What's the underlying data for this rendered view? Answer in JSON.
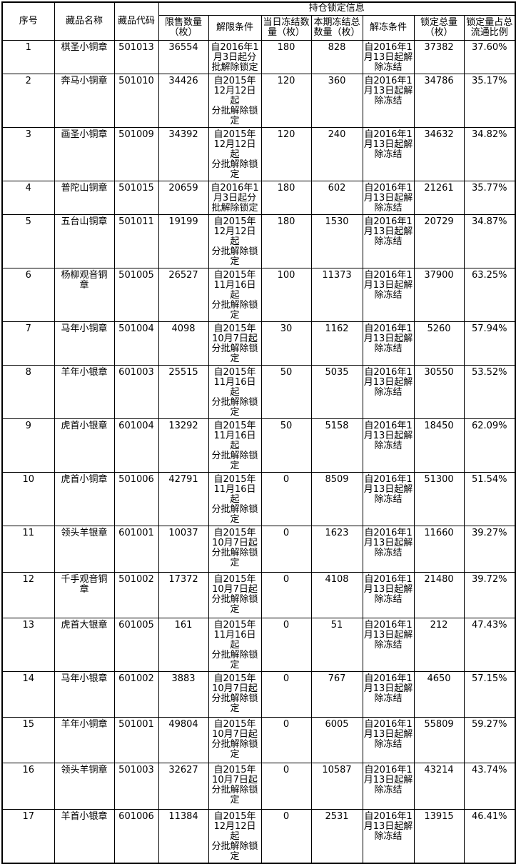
{
  "table": {
    "group_header": "持仓锁定信息",
    "headers": {
      "serial": "序号",
      "name": "藏品名称",
      "code": "藏品代码",
      "restricted_qty": "限售数量\n（枚）",
      "unlock_condition": "解限条件",
      "day_frozen_qty": "当日冻结数\n量（枚）",
      "period_frozen_total": "本期冻结总\n数量（枚）",
      "unfreeze_condition": "解冻条件",
      "locked_total": "锁定总量\n（枚）",
      "locked_ratio": "锁定量占总\n流通比例"
    },
    "rows": [
      [
        "1",
        "棋圣小铜章",
        "501013",
        "36554",
        "自2016年1\n月3日起分\n批解除锁定",
        "180",
        "828",
        "自2016年1\n月13日起解\n除冻结",
        "37382",
        "37.60%"
      ],
      [
        "2",
        "奔马小铜章",
        "501010",
        "34426",
        "自2015年\n12月12日起\n分批解除锁\n定",
        "120",
        "360",
        "自2016年1\n月13日起解\n除冻结",
        "34786",
        "35.17%"
      ],
      [
        "3",
        "画圣小铜章",
        "501009",
        "34392",
        "自2015年\n12月12日起\n分批解除锁\n定",
        "120",
        "240",
        "自2016年1\n月13日起解\n除冻结",
        "34632",
        "34.82%"
      ],
      [
        "4",
        "普陀山铜章",
        "501015",
        "20659",
        "自2016年1\n月3日起分\n批解除锁定",
        "180",
        "602",
        "自2016年1\n月13日起解\n除冻结",
        "21261",
        "35.77%"
      ],
      [
        "5",
        "五台山铜章",
        "501011",
        "19199",
        "自2015年\n12月12日起\n分批解除锁\n定",
        "180",
        "1530",
        "自2016年1\n月13日起解\n除冻结",
        "20729",
        "34.87%"
      ],
      [
        "6",
        "杨柳观音铜\n章",
        "501005",
        "26527",
        "自2015年\n11月16日起\n分批解除锁\n定",
        "100",
        "11373",
        "自2016年1\n月13日起解\n除冻结",
        "37900",
        "63.25%"
      ],
      [
        "7",
        "马年小铜章",
        "501004",
        "4098",
        "自2015年\n10月7日起\n分批解除锁\n定",
        "30",
        "1162",
        "自2016年1\n月13日起解\n除冻结",
        "5260",
        "57.94%"
      ],
      [
        "8",
        "羊年小银章",
        "601003",
        "25515",
        "自2015年\n11月16日起\n分批解除锁\n定",
        "50",
        "5035",
        "自2016年1\n月13日起解\n除冻结",
        "30550",
        "53.52%"
      ],
      [
        "9",
        "虎首小银章",
        "601004",
        "13292",
        "自2015年\n11月16日起\n分批解除锁\n定",
        "50",
        "5158",
        "自2016年1\n月13日起解\n除冻结",
        "18450",
        "62.09%"
      ],
      [
        "10",
        "虎首小铜章",
        "501006",
        "42791",
        "自2015年\n11月16日起\n分批解除锁\n定",
        "0",
        "8509",
        "自2016年1\n月13日起解\n除冻结",
        "51300",
        "51.54%"
      ],
      [
        "11",
        "领头羊银章",
        "601001",
        "10037",
        "自2015年\n10月7日起\n分批解除锁\n定",
        "0",
        "1623",
        "自2016年1\n月13日起解\n除冻结",
        "11660",
        "39.27%"
      ],
      [
        "12",
        "千手观音铜\n章",
        "501002",
        "17372",
        "自2015年\n10月7日起\n分批解除锁\n定",
        "0",
        "4108",
        "自2016年1\n月13日起解\n除冻结",
        "21480",
        "39.72%"
      ],
      [
        "13",
        "虎首大银章",
        "601005",
        "161",
        "自2015年\n11月16日起\n分批解除锁\n定",
        "0",
        "51",
        "自2016年1\n月13日起解\n除冻结",
        "212",
        "47.43%"
      ],
      [
        "14",
        "马年小银章",
        "601002",
        "3883",
        "自2015年\n10月7日起\n分批解除锁\n定",
        "0",
        "767",
        "自2016年1\n月13日起解\n除冻结",
        "4650",
        "57.15%"
      ],
      [
        "15",
        "羊年小铜章",
        "501001",
        "49804",
        "自2015年\n10月7日起\n分批解除锁\n定",
        "0",
        "6005",
        "自2016年1\n月13日起解\n除冻结",
        "55809",
        "59.27%"
      ],
      [
        "16",
        "领头羊铜章",
        "501003",
        "32627",
        "自2015年\n10月7日起\n分批解除锁\n定",
        "0",
        "10587",
        "自2016年1\n月13日起解\n除冻结",
        "43214",
        "43.74%"
      ],
      [
        "17",
        "羊首小银章",
        "601006",
        "11384",
        "自2015年\n12月12日起\n分批解除锁\n定",
        "0",
        "2531",
        "自2016年1\n月13日起解\n除冻结",
        "13915",
        "46.41%"
      ]
    ],
    "column_keys": [
      "serial",
      "name",
      "code",
      "restricted_qty",
      "unlock_condition",
      "day_frozen_qty",
      "period_frozen_total",
      "unfreeze_condition",
      "locked_total",
      "locked_ratio"
    ]
  },
  "colors": {
    "border": "#000000",
    "text": "#000000",
    "background": "#ffffff"
  }
}
